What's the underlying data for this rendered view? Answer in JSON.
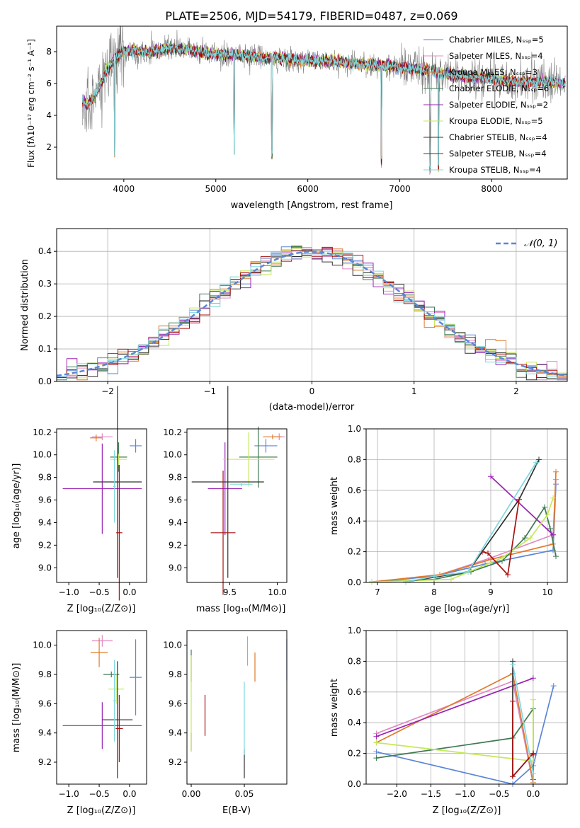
{
  "figure_title": "PLATE=2506, MJD=54179, FIBERID=0487, z=0.069",
  "colors": {
    "chabrier_miles": "#5b86d6",
    "salpeter_miles": "#e08ac4",
    "kroupa_miles": "#e07a2c",
    "chabrier_elodie": "#3f7a52",
    "salpeter_elodie": "#9a24b3",
    "kroupa_elodie": "#c5e85a",
    "chabrier_stelib": "#333333",
    "salpeter_stelib": "#aa1111",
    "kroupa_stelib": "#7fd8dc",
    "data": "#808080",
    "normal": "#5b86d6"
  },
  "chart_data": [
    {
      "id": "spectrum",
      "type": "line",
      "title": "PLATE=2506, MJD=54179, FIBERID=0487, z=0.069",
      "xlabel": "wavelength [Angstrom, rest frame]",
      "ylabel": "Flux [fλ10⁻¹⁷ erg cm⁻² s⁻¹ A⁻¹]",
      "xlim": [
        3270,
        8820
      ],
      "ylim": [
        0,
        9.6
      ],
      "xticks": [
        "4000",
        "5000",
        "6000",
        "7000",
        "8000"
      ],
      "xtick_values": [
        4000,
        5000,
        6000,
        7000,
        8000
      ],
      "yticks": [
        "2",
        "4",
        "6",
        "8"
      ],
      "ytick_values": [
        2,
        4,
        6,
        8
      ],
      "legend_position": "upper-right",
      "series": [
        {
          "name": "Chabrier MILES, Nₛₛₚ=5",
          "key": "chabrier_miles"
        },
        {
          "name": "Salpeter MILES, Nₛₛₚ=4",
          "key": "salpeter_miles"
        },
        {
          "name": "Kroupa MILES, Nₛₛₚ=3",
          "key": "kroupa_miles"
        },
        {
          "name": "Chabrier ELODIE, Nₛₛₚ=6",
          "key": "chabrier_elodie"
        },
        {
          "name": "Salpeter ELODIE, Nₛₛₚ=2",
          "key": "salpeter_elodie"
        },
        {
          "name": "Kroupa ELODIE, Nₛₛₚ=5",
          "key": "kroupa_elodie"
        },
        {
          "name": "Chabrier STELIB, Nₛₛₚ=4",
          "key": "chabrier_stelib"
        },
        {
          "name": "Salpeter STELIB, Nₛₛₚ=4",
          "key": "salpeter_stelib"
        },
        {
          "name": "Kroupa STELIB, Nₛₛₚ=4",
          "key": "kroupa_stelib"
        }
      ],
      "continuum": [
        [
          3550,
          5.0
        ],
        [
          3600,
          4.6
        ],
        [
          3700,
          5.4
        ],
        [
          3800,
          6.6
        ],
        [
          3900,
          7.6
        ],
        [
          4000,
          8.0
        ],
        [
          4100,
          8.1
        ],
        [
          4200,
          8.0
        ],
        [
          4300,
          8.0
        ],
        [
          4400,
          8.1
        ],
        [
          4500,
          8.2
        ],
        [
          4700,
          8.1
        ],
        [
          4900,
          7.9
        ],
        [
          5100,
          7.8
        ],
        [
          5300,
          7.8
        ],
        [
          5500,
          7.6
        ],
        [
          5700,
          7.6
        ],
        [
          6000,
          7.4
        ],
        [
          6300,
          7.4
        ],
        [
          6600,
          7.2
        ],
        [
          6900,
          7.1
        ],
        [
          7200,
          6.9
        ],
        [
          7500,
          6.6
        ],
        [
          7800,
          6.4
        ],
        [
          8000,
          6.3
        ],
        [
          8300,
          6.1
        ],
        [
          8500,
          6.1
        ],
        [
          8800,
          6.0
        ]
      ],
      "notes_line_dips": [
        3900,
        5200,
        5610,
        6800,
        7330,
        7420
      ]
    },
    {
      "id": "residuals",
      "type": "histogram",
      "xlabel": "(data-model)/error",
      "ylabel": "Normed distribution",
      "xlim": [
        -2.5,
        2.5
      ],
      "ylim": [
        0,
        0.47
      ],
      "xticks": [
        "−2",
        "−1",
        "0",
        "1",
        "2"
      ],
      "xtick_values": [
        -2,
        -1,
        0,
        1,
        2
      ],
      "yticks": [
        "0.0",
        "0.1",
        "0.2",
        "0.3",
        "0.4"
      ],
      "ytick_values": [
        0,
        0.1,
        0.2,
        0.3,
        0.4
      ],
      "grid": true,
      "legend_label": "𝒩(0, 1)",
      "bin_width": 0.1
    },
    {
      "id": "age_vs_Z",
      "type": "scatter",
      "xlabel": "Z [log₁₀(Z/Z⊙)]",
      "ylabel": "age  [log₁₀(age/yr)]",
      "xlim": [
        -1.2,
        0.28
      ],
      "ylim": [
        8.87,
        10.23
      ],
      "xticks": [
        "−1.0",
        "−0.5",
        "0.0"
      ],
      "xtick_values": [
        -1.0,
        -0.5,
        0.0
      ],
      "yticks": [
        "9.0",
        "9.2",
        "9.4",
        "9.6",
        "9.8",
        "10.0",
        "10.2"
      ],
      "ytick_values": [
        9.0,
        9.2,
        9.4,
        9.6,
        9.8,
        10.0,
        10.2
      ],
      "points": [
        {
          "key": "chabrier_miles",
          "x": 0.1,
          "y": 10.08,
          "xerr": 0.1,
          "yerr": 0.06
        },
        {
          "key": "salpeter_miles",
          "x": -0.45,
          "y": 10.16,
          "xerr": 0.17,
          "yerr": 0.03
        },
        {
          "key": "kroupa_miles",
          "x": -0.55,
          "y": 10.15,
          "xerr": 0.1,
          "yerr": 0.03
        },
        {
          "key": "chabrier_elodie",
          "x": -0.18,
          "y": 9.98,
          "xerr": 0.14,
          "yerr": 0.13
        },
        {
          "key": "salpeter_elodie",
          "x": -0.45,
          "y": 9.7,
          "xerr": 0.65,
          "yerr": 0.4
        },
        {
          "key": "kroupa_elodie",
          "x": -0.18,
          "y": 9.96,
          "xerr": 0.14,
          "yerr": 0.05
        },
        {
          "key": "chabrier_stelib",
          "x": -0.2,
          "y": 9.76,
          "xerr": 0.4,
          "yerr": 0.85
        },
        {
          "key": "salpeter_stelib",
          "x": -0.17,
          "y": 9.31,
          "xerr": 0.05,
          "yerr": 0.6
        },
        {
          "key": "kroupa_stelib",
          "x": -0.25,
          "y": 9.72,
          "xerr": 0.02,
          "yerr": 0.32
        }
      ]
    },
    {
      "id": "age_vs_mass",
      "type": "scatter",
      "xlabel": "mass [log₁₀(M/M⊙)]",
      "ylabel": "",
      "xlim": [
        9.05,
        10.1
      ],
      "ylim": [
        8.87,
        10.23
      ],
      "xticks": [
        "9.5",
        "10.0"
      ],
      "xtick_values": [
        9.5,
        10.0
      ],
      "yticks": [
        "9.0",
        "9.2",
        "9.4",
        "9.6",
        "9.8",
        "10.0",
        "10.2"
      ],
      "ytick_values": [
        9.0,
        9.2,
        9.4,
        9.6,
        9.8,
        10.0,
        10.2
      ],
      "points": [
        {
          "key": "chabrier_miles",
          "x": 9.88,
          "y": 10.08,
          "xerr": 0.12,
          "yerr": 0.06
        },
        {
          "key": "salpeter_miles",
          "x": 10.02,
          "y": 10.16,
          "xerr": 0.06,
          "yerr": 0.03
        },
        {
          "key": "kroupa_miles",
          "x": 9.95,
          "y": 10.16,
          "xerr": 0.1,
          "yerr": 0.02
        },
        {
          "key": "chabrier_elodie",
          "x": 9.8,
          "y": 9.98,
          "xerr": 0.2,
          "yerr": 0.27
        },
        {
          "key": "salpeter_elodie",
          "x": 9.45,
          "y": 9.7,
          "xerr": 0.18,
          "yerr": 0.41
        },
        {
          "key": "kroupa_elodie",
          "x": 9.7,
          "y": 9.96,
          "xerr": 0.27,
          "yerr": 0.24
        },
        {
          "key": "chabrier_stelib",
          "x": 9.48,
          "y": 9.76,
          "xerr": 0.38,
          "yerr": 0.85
        },
        {
          "key": "salpeter_stelib",
          "x": 9.43,
          "y": 9.31,
          "xerr": 0.13,
          "yerr": 0.55
        },
        {
          "key": "kroupa_stelib",
          "x": 9.62,
          "y": 9.74,
          "xerr": 0.12,
          "yerr": 0.02
        }
      ]
    },
    {
      "id": "weight_vs_age",
      "type": "line",
      "xlabel": "age  [log₁₀(age/yr)]",
      "ylabel": "mass weight",
      "xlim": [
        6.8,
        10.35
      ],
      "ylim": [
        0,
        1.0
      ],
      "xticks": [
        "7",
        "8",
        "9",
        "10"
      ],
      "xtick_values": [
        7,
        8,
        9,
        10
      ],
      "yticks": [
        "0.0",
        "0.2",
        "0.4",
        "0.6",
        "0.8",
        "1.0"
      ],
      "ytick_values": [
        0,
        0.2,
        0.4,
        0.6,
        0.8,
        1.0
      ],
      "grid": true,
      "series": [
        {
          "key": "chabrier_miles",
          "x": [
            6.9,
            8.0,
            8.9,
            10.1,
            10.15
          ],
          "y": [
            0.003,
            0.04,
            0.12,
            0.21,
            0.64
          ]
        },
        {
          "key": "salpeter_miles",
          "x": [
            6.9,
            8.1,
            9.0,
            10.1,
            10.15
          ],
          "y": [
            0.003,
            0.05,
            0.16,
            0.31,
            0.67
          ]
        },
        {
          "key": "kroupa_miles",
          "x": [
            6.9,
            8.1,
            9.0,
            10.1,
            10.15
          ],
          "y": [
            0.003,
            0.05,
            0.15,
            0.25,
            0.72
          ]
        },
        {
          "key": "chabrier_elodie",
          "x": [
            6.9,
            8.0,
            8.65,
            9.2,
            9.6,
            9.95,
            10.05,
            10.15
          ],
          "y": [
            0.003,
            0.02,
            0.07,
            0.14,
            0.29,
            0.49,
            0.35,
            0.17
          ]
        },
        {
          "key": "salpeter_elodie",
          "x": [
            9.0,
            10.1
          ],
          "y": [
            0.69,
            0.31
          ]
        },
        {
          "key": "kroupa_elodie",
          "x": [
            6.9,
            8.3,
            9.2,
            9.7,
            10.0,
            10.1
          ],
          "y": [
            0.003,
            0.02,
            0.16,
            0.29,
            0.44,
            0.55
          ]
        },
        {
          "key": "chabrier_stelib",
          "x": [
            7.5,
            8.6,
            9.5,
            9.85
          ],
          "y": [
            0.003,
            0.07,
            0.54,
            0.8
          ]
        },
        {
          "key": "salpeter_stelib",
          "x": [
            8.85,
            8.95,
            9.3,
            9.5
          ],
          "y": [
            0.2,
            0.19,
            0.05,
            0.54
          ]
        },
        {
          "key": "kroupa_stelib",
          "x": [
            7.5,
            8.0,
            8.6,
            9.8
          ],
          "y": [
            0.003,
            0.04,
            0.07,
            0.78
          ]
        }
      ]
    },
    {
      "id": "mass_vs_Z",
      "type": "scatter",
      "xlabel": "Z [log₁₀(Z/Z⊙)]",
      "ylabel": "mass [log₁₀(M/M⊙)]",
      "xlim": [
        -1.2,
        0.28
      ],
      "ylim": [
        9.05,
        10.1
      ],
      "xticks": [
        "−1.0",
        "−0.5",
        "0.0"
      ],
      "xtick_values": [
        -1.0,
        -0.5,
        0.0
      ],
      "yticks": [
        "9.2",
        "9.4",
        "9.6",
        "9.8",
        "10.0"
      ],
      "ytick_values": [
        9.2,
        9.4,
        9.6,
        9.8,
        10.0
      ],
      "points": [
        {
          "key": "chabrier_miles",
          "x": 0.1,
          "y": 9.78,
          "xerr": 0.1,
          "yerr": 0.26
        },
        {
          "key": "salpeter_miles",
          "x": -0.45,
          "y": 10.03,
          "xerr": 0.17,
          "yerr": 0.04
        },
        {
          "key": "kroupa_miles",
          "x": -0.5,
          "y": 9.95,
          "xerr": 0.14,
          "yerr": 0.1
        },
        {
          "key": "chabrier_elodie",
          "x": -0.3,
          "y": 9.8,
          "xerr": 0.13,
          "yerr": 0.02
        },
        {
          "key": "salpeter_elodie",
          "x": -0.45,
          "y": 9.45,
          "xerr": 0.65,
          "yerr": 0.16
        },
        {
          "key": "kroupa_elodie",
          "x": -0.22,
          "y": 9.7,
          "xerr": 0.13,
          "yerr": 0.1
        },
        {
          "key": "chabrier_stelib",
          "x": -0.2,
          "y": 9.49,
          "xerr": 0.25,
          "yerr": 0.4
        },
        {
          "key": "salpeter_stelib",
          "x": -0.17,
          "y": 9.43,
          "xerr": 0.06,
          "yerr": 0.23
        },
        {
          "key": "kroupa_stelib",
          "x": -0.25,
          "y": 9.62,
          "xerr": 0.02,
          "yerr": 0.28
        }
      ]
    },
    {
      "id": "mass_vs_ebv",
      "type": "scatter",
      "xlabel": "E(B-V)",
      "ylabel": "",
      "xlim": [
        -0.004,
        0.09
      ],
      "ylim": [
        9.05,
        10.1
      ],
      "xticks": [
        "0.00",
        "0.05"
      ],
      "xtick_values": [
        0.0,
        0.05
      ],
      "yticks": [
        "9.2",
        "9.4",
        "9.6",
        "9.8",
        "10.0"
      ],
      "ytick_values": [
        9.2,
        9.4,
        9.6,
        9.8,
        10.0
      ],
      "points": [
        {
          "key": "chabrier_miles",
          "x": 0.09,
          "y": 9.9,
          "yerr": 0.14
        },
        {
          "key": "salpeter_miles",
          "x": 0.053,
          "y": 9.96,
          "yerr": 0.1
        },
        {
          "key": "kroupa_miles",
          "x": 0.06,
          "y": 9.85,
          "yerr": 0.1
        },
        {
          "key": "chabrier_elodie",
          "x": 0.0,
          "y": 9.86,
          "yerr": 0.11
        },
        {
          "key": "salpeter_elodie",
          "x": 0.0,
          "y": 9.34,
          "yerr": 0.06
        },
        {
          "key": "kroupa_elodie",
          "x": 0.0,
          "y": 9.6,
          "yerr": 0.33
        },
        {
          "key": "chabrier_stelib",
          "x": 0.05,
          "y": 9.19,
          "yerr": 0.1
        },
        {
          "key": "salpeter_stelib",
          "x": 0.013,
          "y": 9.52,
          "yerr": 0.14
        },
        {
          "key": "kroupa_stelib",
          "x": 0.05,
          "y": 9.5,
          "yerr": 0.25
        }
      ]
    },
    {
      "id": "weight_vs_Z",
      "type": "line",
      "xlabel": "Z [log₁₀(Z/Z⊙)]",
      "ylabel": "mass weight",
      "xlim": [
        -2.45,
        0.5
      ],
      "ylim": [
        0,
        1.0
      ],
      "xticks": [
        "−2.0",
        "−1.5",
        "−1.0",
        "−0.5",
        "0.0"
      ],
      "xtick_values": [
        -2.0,
        -1.5,
        -1.0,
        -0.5,
        0.0
      ],
      "yticks": [
        "0.0",
        "0.2",
        "0.4",
        "0.6",
        "0.8",
        "1.0"
      ],
      "ytick_values": [
        0,
        0.2,
        0.4,
        0.6,
        0.8,
        1.0
      ],
      "grid": true,
      "series": [
        {
          "key": "chabrier_miles",
          "x": [
            -2.3,
            -0.3,
            0.0,
            0.3
          ],
          "y": [
            0.21,
            0.0,
            0.12,
            0.64
          ]
        },
        {
          "key": "salpeter_miles",
          "x": [
            -2.3,
            -0.3,
            0.0
          ],
          "y": [
            0.33,
            0.67,
            0.0
          ]
        },
        {
          "key": "kroupa_miles",
          "x": [
            -2.3,
            -0.3,
            0.0
          ],
          "y": [
            0.27,
            0.72,
            0.01
          ]
        },
        {
          "key": "chabrier_elodie",
          "x": [
            -2.3,
            -0.3,
            0.0,
            0.0
          ],
          "y": [
            0.17,
            0.3,
            0.49,
            0.03
          ]
        },
        {
          "key": "salpeter_elodie",
          "x": [
            -2.3,
            0.0
          ],
          "y": [
            0.31,
            0.69
          ]
        },
        {
          "key": "kroupa_elodie",
          "x": [
            -2.3,
            0.0,
            0.0
          ],
          "y": [
            0.27,
            0.15,
            0.55
          ]
        },
        {
          "key": "chabrier_stelib",
          "x": [
            -0.3,
            -0.3,
            0.0
          ],
          "y": [
            0.8,
            0.05,
            0.2
          ]
        },
        {
          "key": "salpeter_stelib",
          "x": [
            -0.3,
            -0.3,
            0.0,
            0.0
          ],
          "y": [
            0.54,
            0.05,
            0.2,
            0.19
          ]
        },
        {
          "key": "kroupa_stelib",
          "x": [
            -0.3,
            0.0,
            0.0
          ],
          "y": [
            0.78,
            0.07,
            0.0
          ]
        }
      ]
    }
  ]
}
